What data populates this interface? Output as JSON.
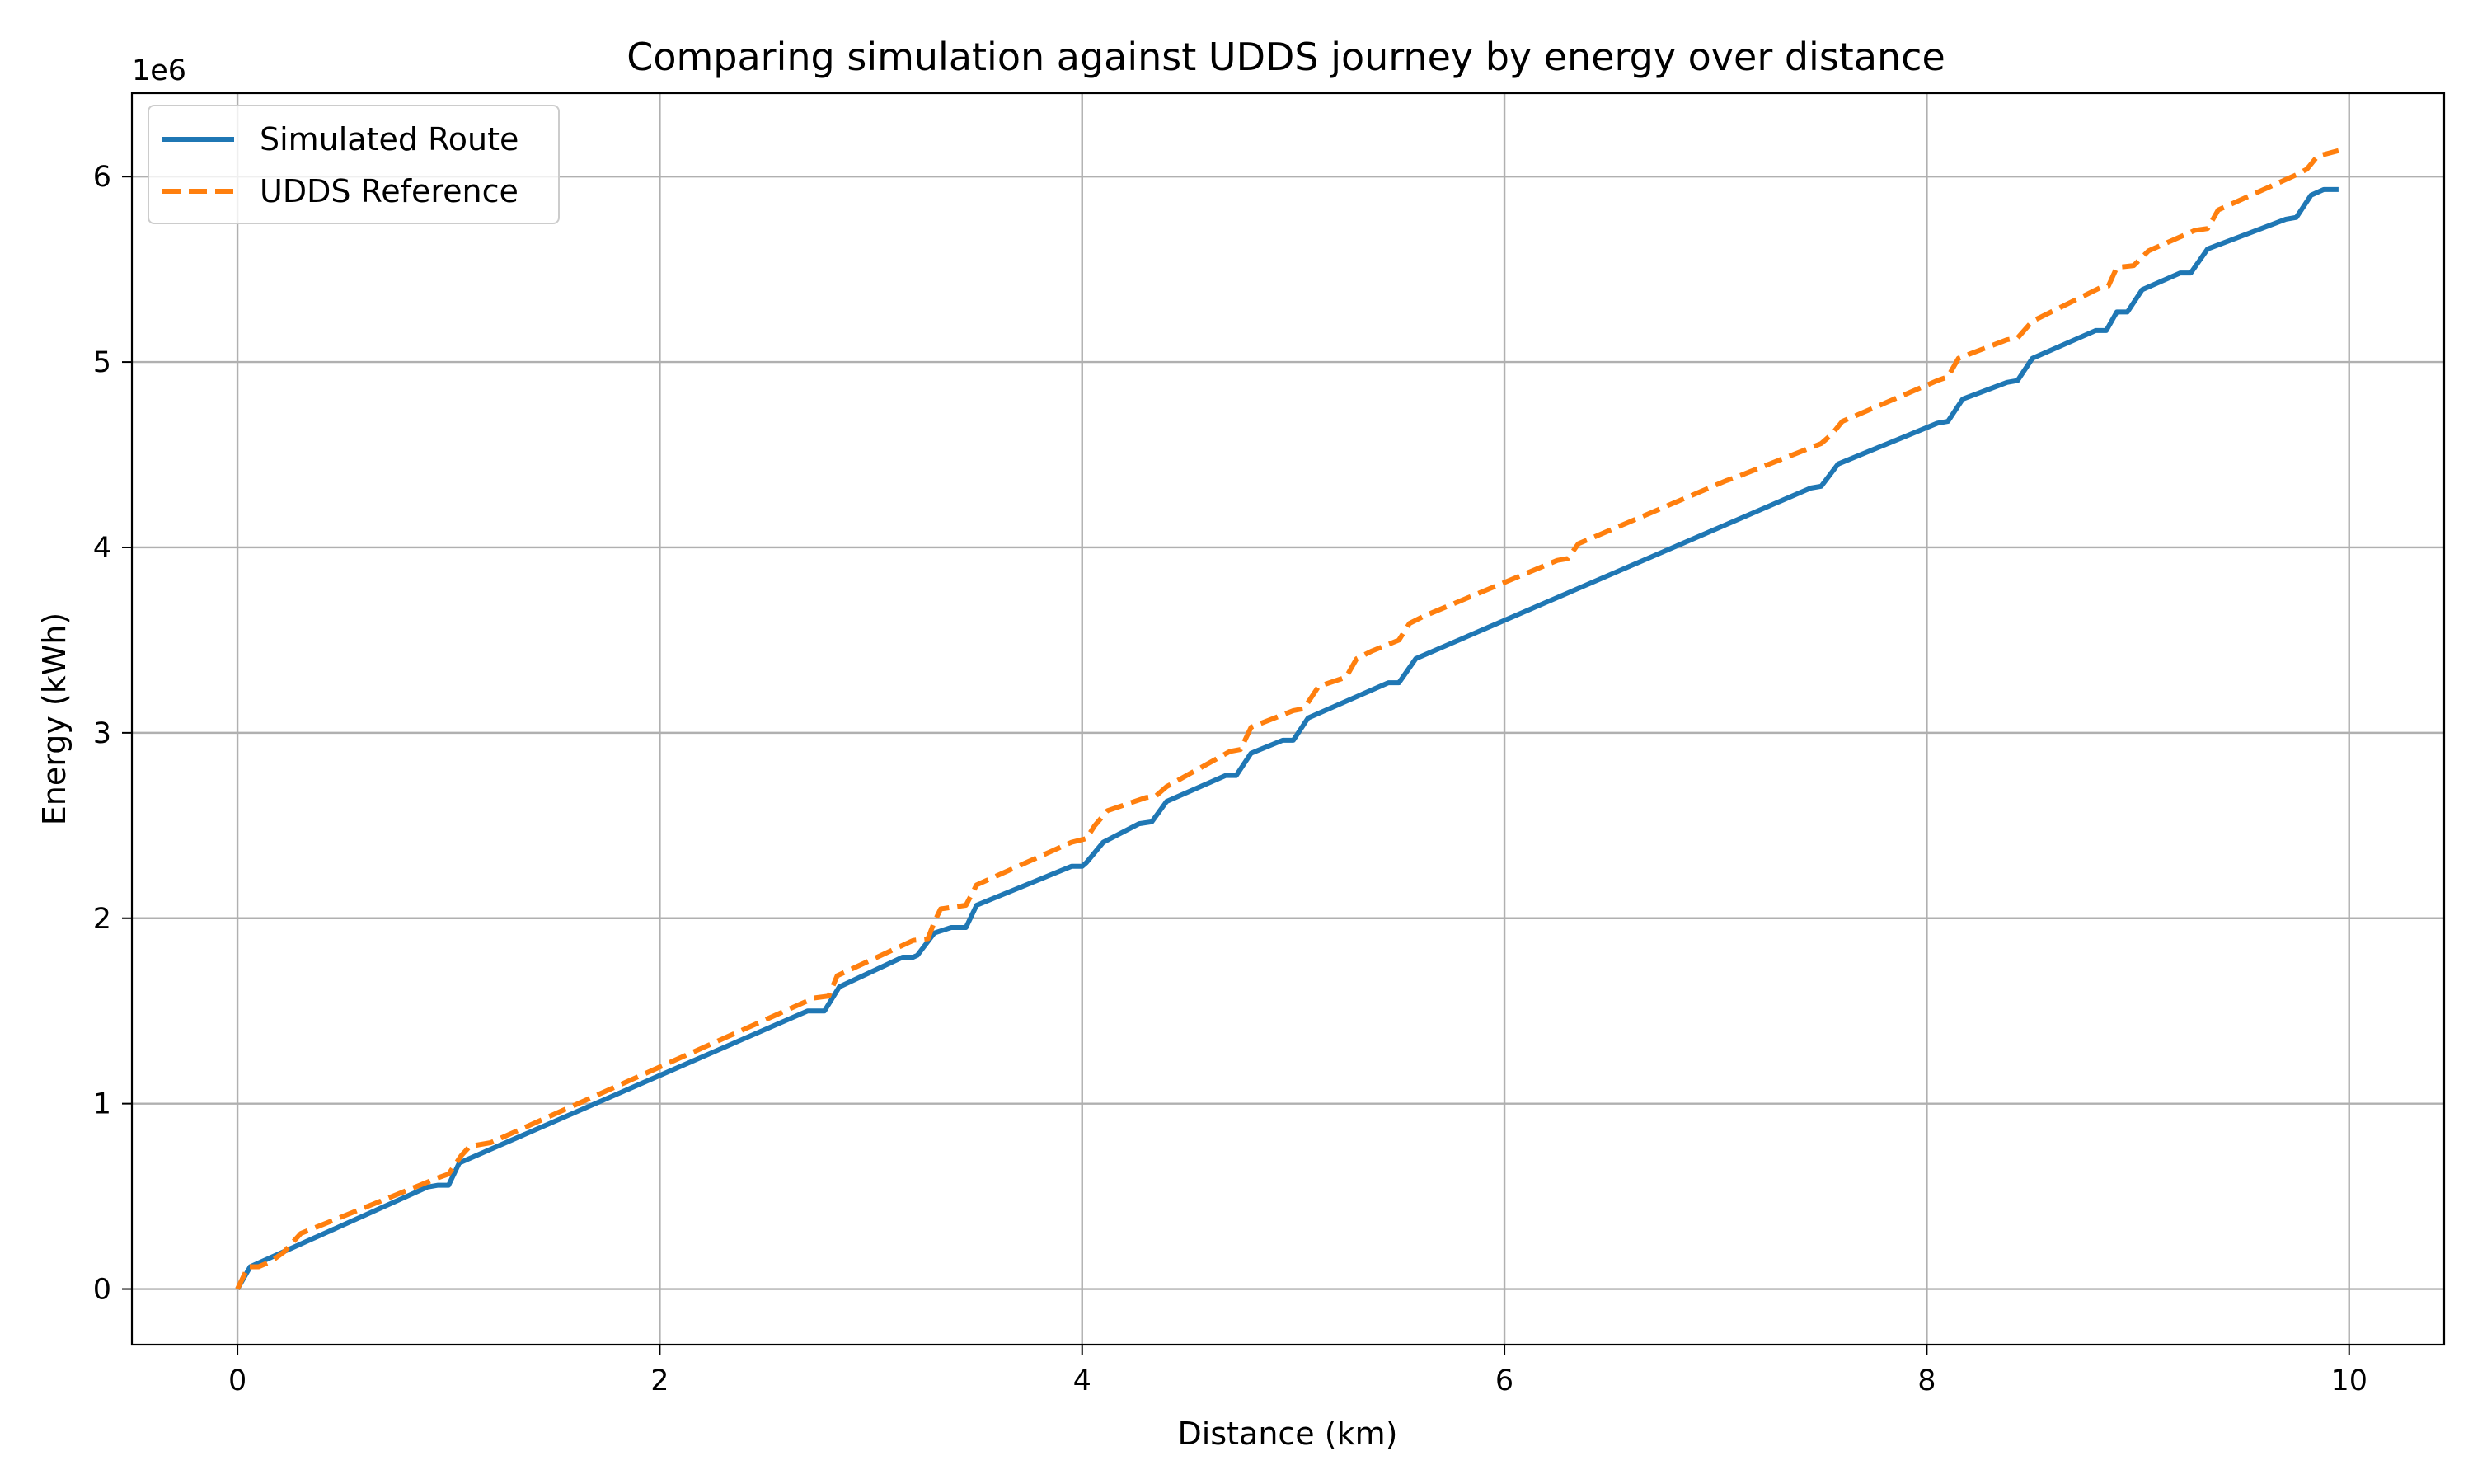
{
  "chart_data": {
    "type": "line",
    "title": "Comparing simulation against UDDS journey by energy over distance",
    "xlabel": "Distance (km)",
    "ylabel": "Energy (kWh)",
    "y_multiplier_label": "1e6",
    "xlim": [
      -0.5,
      10.45
    ],
    "ylim": [
      -0.3,
      6.45
    ],
    "y_scale": 1000000,
    "xticks": [
      0,
      2,
      4,
      6,
      8,
      10
    ],
    "yticks": [
      0,
      1,
      2,
      3,
      4,
      5,
      6
    ],
    "grid": true,
    "legend_position": "top-left",
    "series": [
      {
        "name": "Simulated Route",
        "color": "#1f77b4",
        "style": "solid",
        "x": [
          0,
          0.06,
          0.9,
          0.95,
          1.0,
          1.05,
          2.7,
          2.75,
          2.78,
          2.85,
          3.15,
          3.2,
          3.22,
          3.3,
          3.38,
          3.45,
          3.5,
          3.95,
          4.0,
          4.02,
          4.1,
          4.27,
          4.33,
          4.4,
          4.68,
          4.73,
          4.8,
          4.95,
          5.0,
          5.07,
          5.45,
          5.5,
          5.58,
          7.45,
          7.5,
          7.58,
          8.05,
          8.1,
          8.17,
          8.38,
          8.43,
          8.5,
          8.8,
          8.85,
          8.9,
          8.95,
          9.02,
          9.2,
          9.25,
          9.33,
          9.7,
          9.75,
          9.82,
          9.88,
          9.95
        ],
        "y": [
          0,
          0.12,
          0.55,
          0.56,
          0.56,
          0.68,
          1.5,
          1.5,
          1.5,
          1.63,
          1.79,
          1.79,
          1.8,
          1.92,
          1.95,
          1.95,
          2.07,
          2.28,
          2.28,
          2.3,
          2.41,
          2.51,
          2.52,
          2.63,
          2.77,
          2.77,
          2.89,
          2.96,
          2.96,
          3.08,
          3.27,
          3.27,
          3.4,
          4.32,
          4.33,
          4.45,
          4.67,
          4.68,
          4.8,
          4.89,
          4.9,
          5.02,
          5.17,
          5.17,
          5.27,
          5.27,
          5.39,
          5.48,
          5.48,
          5.61,
          5.77,
          5.78,
          5.9,
          5.93,
          5.93
        ]
      },
      {
        "name": "UDDS Reference",
        "color": "#ff7f0e",
        "style": "dashed",
        "x": [
          0,
          0.05,
          0.1,
          0.16,
          0.22,
          0.3,
          0.95,
          1.0,
          1.06,
          1.1,
          1.2,
          2.73,
          2.8,
          2.84,
          3.2,
          3.27,
          3.3,
          3.33,
          3.45,
          3.5,
          3.95,
          4.02,
          4.06,
          4.12,
          4.3,
          4.35,
          4.4,
          4.7,
          4.75,
          4.8,
          5.0,
          5.05,
          5.12,
          5.25,
          5.3,
          5.37,
          5.5,
          5.55,
          5.62,
          6.25,
          6.3,
          6.35,
          7.05,
          7.1,
          7.5,
          7.55,
          7.6,
          8.05,
          8.1,
          8.15,
          8.38,
          8.43,
          8.5,
          8.82,
          8.86,
          8.9,
          8.98,
          9.05,
          9.27,
          9.33,
          9.38,
          9.75,
          9.8,
          9.85,
          9.95
        ],
        "y": [
          0,
          0.12,
          0.12,
          0.15,
          0.2,
          0.3,
          0.6,
          0.62,
          0.72,
          0.77,
          0.79,
          1.57,
          1.58,
          1.69,
          1.88,
          1.89,
          1.98,
          2.05,
          2.07,
          2.18,
          2.41,
          2.43,
          2.5,
          2.58,
          2.65,
          2.66,
          2.71,
          2.9,
          2.91,
          3.03,
          3.12,
          3.13,
          3.25,
          3.3,
          3.4,
          3.44,
          3.5,
          3.59,
          3.63,
          3.93,
          3.94,
          4.02,
          4.36,
          4.38,
          4.56,
          4.61,
          4.68,
          4.9,
          4.92,
          5.02,
          5.12,
          5.13,
          5.22,
          5.4,
          5.41,
          5.51,
          5.52,
          5.6,
          5.71,
          5.72,
          5.82,
          6.01,
          6.04,
          6.11,
          6.14
        ]
      }
    ]
  }
}
